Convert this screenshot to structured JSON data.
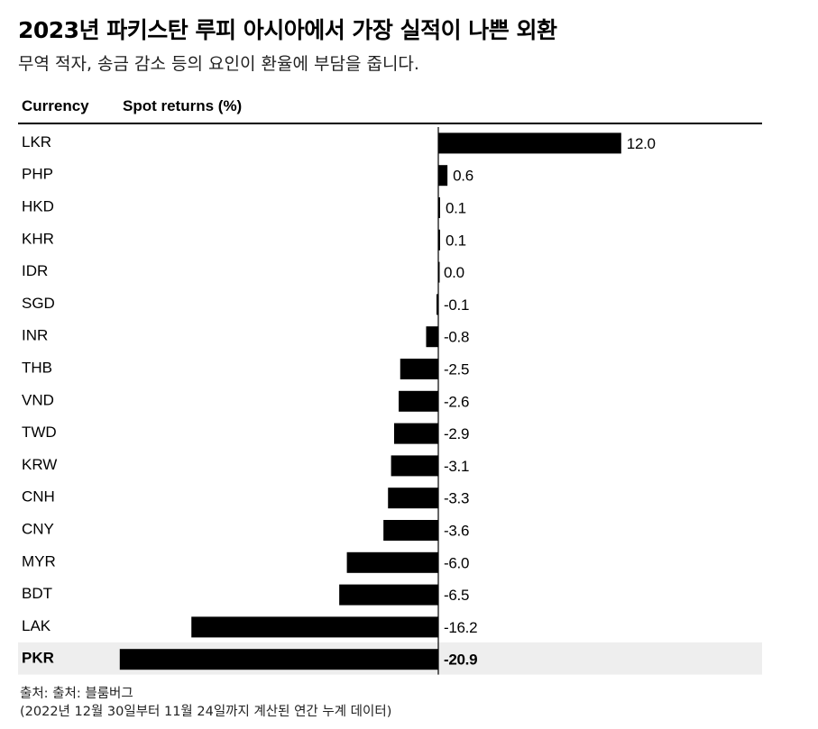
{
  "title": "2023년 파키스탄 루피 아시아에서 가장 실적이 나쁜 외환",
  "subtitle": "무역 적자, 송금 감소 등의 요인이 환율에 부담을 줍니다.",
  "source_line": "출처: 출처: 블룸버그",
  "note_line": "(2022년 12월 30일부터 11월 24일까지 계산된 연간 누계 데이터)",
  "colors": {
    "bar": "#000000",
    "highlight_row": "#eeeeee",
    "text": "#000000"
  },
  "chart_data": {
    "type": "bar",
    "orientation": "horizontal",
    "column_headers": [
      "Currency",
      "Spot returns (%)"
    ],
    "categories": [
      "LKR",
      "PHP",
      "HKD",
      "KHR",
      "IDR",
      "SGD",
      "INR",
      "THB",
      "VND",
      "TWD",
      "KRW",
      "CNH",
      "CNY",
      "MYR",
      "BDT",
      "LAK",
      "PKR"
    ],
    "values": [
      12.0,
      0.6,
      0.1,
      0.1,
      0.0,
      -0.1,
      -0.8,
      -2.5,
      -2.6,
      -2.9,
      -3.1,
      -3.3,
      -3.6,
      -6.0,
      -6.5,
      -16.2,
      -20.9
    ],
    "value_labels": [
      "12.0",
      "0.6",
      "0.1",
      "0.1",
      "0.0",
      "-0.1",
      "-0.8",
      "-2.5",
      "-2.6",
      "-2.9",
      "-3.1",
      "-3.3",
      "-3.6",
      "-6.0",
      "-6.5",
      "-16.2",
      "-20.9"
    ],
    "highlighted_category": "PKR",
    "xlim": [
      -20.9,
      12.0
    ]
  }
}
